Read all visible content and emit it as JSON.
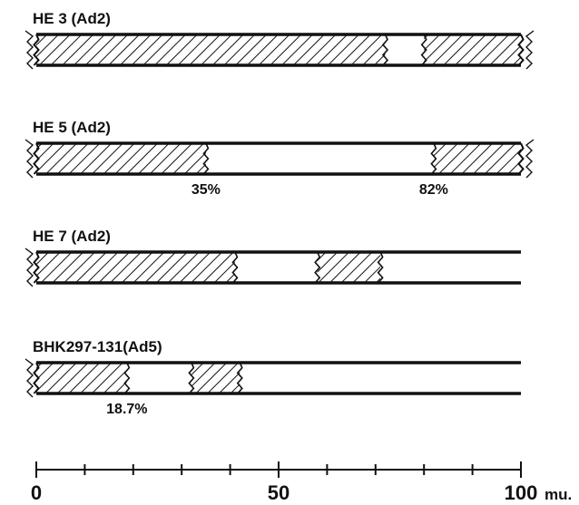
{
  "tracks": [
    {
      "label": "HE 3 (Ad2)",
      "segments": [
        {
          "start": 0,
          "end": 72
        },
        {
          "start": 80,
          "end": 100
        }
      ],
      "percent_labels": []
    },
    {
      "label": "HE 5 (Ad2)",
      "segments": [
        {
          "start": 0,
          "end": 35
        },
        {
          "start": 82,
          "end": 100
        }
      ],
      "percent_labels": [
        {
          "text": "35%",
          "at": 35
        },
        {
          "text": "82%",
          "at": 82
        }
      ]
    },
    {
      "label": "HE 7 (Ad2)",
      "segments": [
        {
          "start": 0,
          "end": 41
        },
        {
          "start": 58,
          "end": 71
        }
      ],
      "percent_labels": []
    },
    {
      "label": "BHK297-131(Ad5)",
      "segments": [
        {
          "start": 0,
          "end": 18.7
        },
        {
          "start": 32,
          "end": 42
        }
      ],
      "percent_labels": [
        {
          "text": "18.7%",
          "at": 18.7
        }
      ]
    }
  ],
  "scale": {
    "min": 0,
    "max": 100,
    "minor_step": 10,
    "labels": [
      {
        "value": 0,
        "text": "0"
      },
      {
        "value": 50,
        "text": "50"
      },
      {
        "value": 100,
        "text": "100"
      }
    ],
    "unit": "mu."
  },
  "colors": {
    "ink": "#111111",
    "background": "#ffffff"
  }
}
